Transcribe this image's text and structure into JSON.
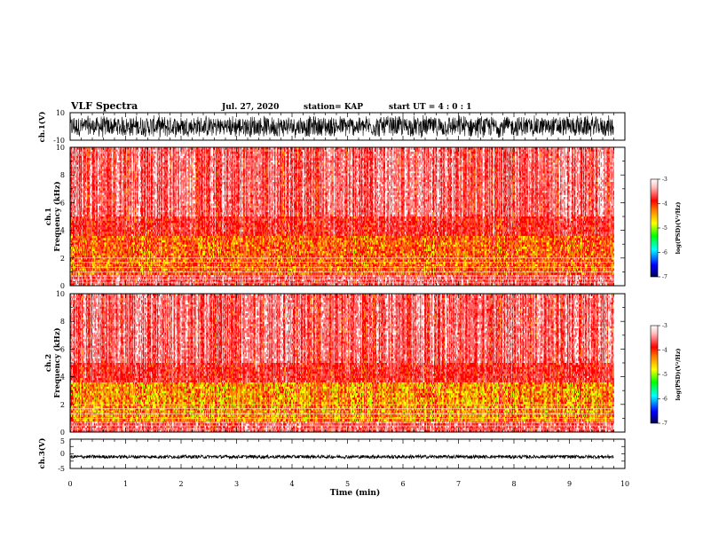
{
  "header": {
    "title": "VLF Spectra",
    "date": "Jul. 27, 2020",
    "station": "station= KAP",
    "start_ut": "start UT =  4 : 0 : 1"
  },
  "colors": {
    "background": "#ffffff",
    "axes": "#000000",
    "colorbar": [
      "#000060",
      "#0000ff",
      "#00ffff",
      "#00ff00",
      "#ffff00",
      "#ff8000",
      "#ff0000",
      "#ffe0e0",
      "#ffffff"
    ]
  },
  "chart_data": [
    {
      "type": "line",
      "name": "ch1-waveform",
      "ylabel": "ch.1(V)",
      "ylim": [
        -10,
        10
      ],
      "yticks": [
        "10",
        "-10"
      ],
      "xlim": [
        0,
        10
      ],
      "description_of_series": "dense noisy waveform spanning roughly -8 to 8 V across 0–9.8 min"
    },
    {
      "type": "heatmap",
      "name": "ch1-spectrogram",
      "ylabel": "ch.1 Frequency (kHz)",
      "ylim": [
        0,
        10
      ],
      "yticks": [
        "0",
        "2",
        "4",
        "6",
        "8",
        "10"
      ],
      "xlim": [
        0,
        10
      ],
      "data_end_min": 9.8,
      "colorbar": {
        "label": "log(PSD)(V²/Hz)",
        "range": [
          -7,
          -3
        ],
        "ticks": [
          "-3",
          "-4",
          "-5",
          "-6",
          "-7"
        ]
      }
    },
    {
      "type": "heatmap",
      "name": "ch2-spectrogram",
      "ylabel": "ch.2 Frequency (kHz)",
      "ylim": [
        0,
        10
      ],
      "yticks": [
        "0",
        "2",
        "4",
        "6",
        "8",
        "10"
      ],
      "xlim": [
        0,
        10
      ],
      "data_end_min": 9.8,
      "colorbar": {
        "label": "log(PSD)(V²/Hz)",
        "range": [
          -7,
          -3
        ],
        "ticks": [
          "-3",
          "-4",
          "-5",
          "-6",
          "-7"
        ]
      }
    },
    {
      "type": "line",
      "name": "ch3-waveform",
      "ylabel": "ch.3(V)",
      "ylim": [
        -5,
        5
      ],
      "yticks": [
        "5",
        "0",
        "-5"
      ],
      "xlim": [
        0,
        10
      ],
      "xlabel": "Time (min)",
      "xticks": [
        "0",
        "1",
        "2",
        "3",
        "4",
        "5",
        "6",
        "7",
        "8",
        "9",
        "10"
      ],
      "description_of_series": "narrow band near -1 V across 0–9.8 min"
    }
  ]
}
